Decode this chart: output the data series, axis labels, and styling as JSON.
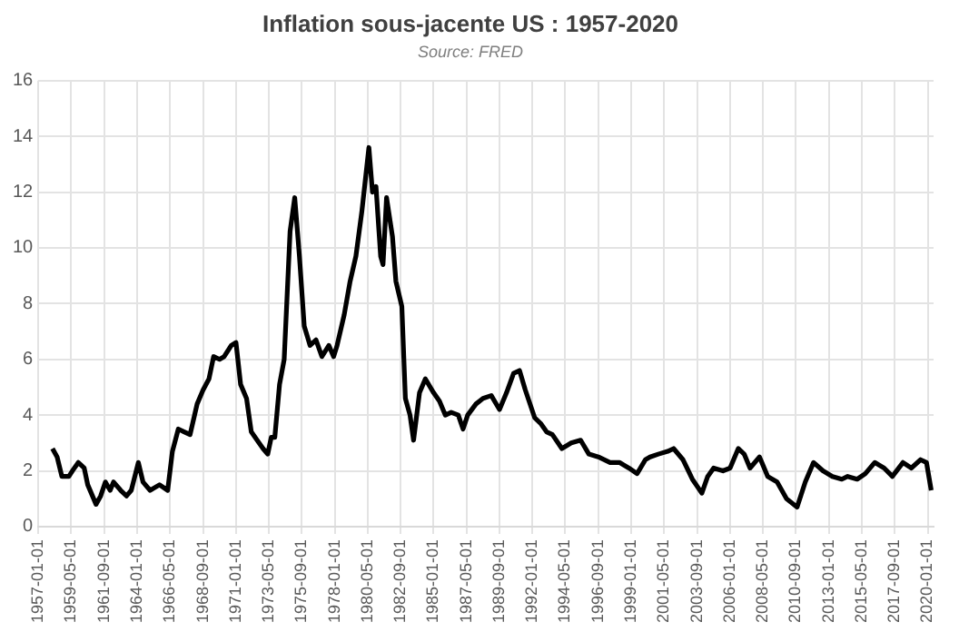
{
  "chart_data": {
    "type": "line",
    "title": "Inflation sous-jacente US : 1957-2020",
    "subtitle": "Source: FRED",
    "x": [
      "1958-01-01",
      "1958-05-01",
      "1958-09-01",
      "1959-03-01",
      "1959-06-01",
      "1959-11-01",
      "1960-04-01",
      "1960-07-01",
      "1961-02-01",
      "1961-06-01",
      "1961-10-01",
      "1962-02-01",
      "1962-05-01",
      "1962-11-01",
      "1963-04-01",
      "1963-08-01",
      "1964-02-01",
      "1964-06-01",
      "1964-12-01",
      "1965-08-01",
      "1966-03-01",
      "1966-07-01",
      "1966-12-01",
      "1967-05-01",
      "1967-10-01",
      "1968-04-01",
      "1968-09-01",
      "1969-02-01",
      "1969-06-01",
      "1969-11-01",
      "1970-03-01",
      "1970-09-01",
      "1971-01-01",
      "1971-05-01",
      "1971-10-01",
      "1972-02-01",
      "1972-07-01",
      "1972-12-01",
      "1973-04-01",
      "1973-07-01",
      "1973-10-01",
      "1974-02-01",
      "1974-06-01",
      "1974-11-01",
      "1975-03-01",
      "1975-07-01",
      "1975-11-01",
      "1976-04-01",
      "1976-09-01",
      "1977-02-01",
      "1977-08-01",
      "1977-12-01",
      "1978-03-01",
      "1978-09-01",
      "1979-02-01",
      "1979-07-01",
      "1979-12-01",
      "1980-06-01",
      "1980-09-01",
      "1980-12-01",
      "1981-04-01",
      "1981-06-01",
      "1981-09-01",
      "1982-02-01",
      "1982-05-01",
      "1982-10-01",
      "1983-01-01",
      "1983-05-01",
      "1983-08-01",
      "1984-01-01",
      "1984-06-01",
      "1985-01-01",
      "1985-06-01",
      "1985-11-01",
      "1986-04-01",
      "1986-10-01",
      "1987-02-01",
      "1987-06-01",
      "1988-01-01",
      "1988-07-01",
      "1989-02-01",
      "1989-09-01",
      "1990-03-01",
      "1990-09-01",
      "1991-02-01",
      "1991-07-01",
      "1992-03-01",
      "1992-08-01",
      "1993-01-01",
      "1993-06-01",
      "1994-02-01",
      "1994-10-01",
      "1995-06-01",
      "1996-01-01",
      "1996-09-01",
      "1997-07-01",
      "1998-03-01",
      "1998-11-01",
      "1999-06-01",
      "2000-01-01",
      "2000-05-01",
      "2000-12-01",
      "2001-08-01",
      "2002-01-01",
      "2002-09-01",
      "2003-05-01",
      "2004-01-01",
      "2004-06-01",
      "2004-11-01",
      "2005-07-01",
      "2006-01-01",
      "2006-08-01",
      "2007-01-01",
      "2007-06-01",
      "2008-02-01",
      "2008-09-01",
      "2009-05-01",
      "2010-01-01",
      "2010-10-01",
      "2011-05-01",
      "2011-12-01",
      "2012-08-01",
      "2013-04-01",
      "2013-12-01",
      "2014-05-01",
      "2015-01-01",
      "2015-08-01",
      "2016-04-01",
      "2016-12-01",
      "2017-07-01",
      "2018-04-01",
      "2018-11-01",
      "2019-07-01",
      "2019-12-01",
      "2020-04-01"
    ],
    "series": [
      {
        "color": "#000000",
        "values": [
          2.8,
          2.5,
          1.8,
          1.8,
          2.0,
          2.3,
          2.1,
          1.5,
          0.8,
          1.1,
          1.6,
          1.3,
          1.6,
          1.3,
          1.1,
          1.3,
          2.3,
          1.6,
          1.3,
          1.5,
          1.3,
          2.7,
          3.5,
          3.4,
          3.3,
          4.4,
          4.9,
          5.3,
          6.1,
          6.0,
          6.1,
          6.5,
          6.6,
          5.1,
          4.6,
          3.4,
          3.1,
          2.8,
          2.6,
          3.2,
          3.2,
          5.1,
          6.0,
          10.6,
          11.8,
          9.7,
          7.2,
          6.5,
          6.7,
          6.1,
          6.5,
          6.1,
          6.5,
          7.6,
          8.8,
          9.7,
          11.3,
          13.6,
          12.0,
          12.2,
          9.7,
          9.4,
          11.8,
          10.4,
          8.8,
          7.9,
          4.6,
          4.0,
          3.1,
          4.8,
          5.3,
          4.8,
          4.5,
          4.0,
          4.1,
          4.0,
          3.5,
          4.0,
          4.4,
          4.6,
          4.7,
          4.2,
          4.8,
          5.5,
          5.6,
          4.9,
          3.9,
          3.7,
          3.4,
          3.3,
          2.8,
          3.0,
          3.1,
          2.6,
          2.5,
          2.3,
          2.3,
          2.1,
          1.9,
          2.4,
          2.5,
          2.6,
          2.7,
          2.8,
          2.4,
          1.7,
          1.2,
          1.8,
          2.1,
          2.0,
          2.1,
          2.8,
          2.6,
          2.1,
          2.5,
          1.8,
          1.6,
          1.0,
          0.7,
          1.6,
          2.3,
          2.0,
          1.8,
          1.7,
          1.8,
          1.7,
          1.9,
          2.3,
          2.1,
          1.8,
          2.3,
          2.1,
          2.4,
          2.3,
          1.3
        ]
      }
    ],
    "xlim": [
      "1957-01-01",
      "2020-06-01"
    ],
    "xticks": [
      "1957-01-01",
      "1959-05-01",
      "1961-09-01",
      "1964-01-01",
      "1966-05-01",
      "1968-09-01",
      "1971-01-01",
      "1973-05-01",
      "1975-09-01",
      "1978-01-01",
      "1980-05-01",
      "1982-09-01",
      "1985-01-01",
      "1987-05-01",
      "1989-09-01",
      "1992-01-01",
      "1994-05-01",
      "1996-09-01",
      "1999-01-01",
      "2001-05-01",
      "2003-09-01",
      "2006-01-01",
      "2008-05-01",
      "2010-09-01",
      "2013-01-01",
      "2015-05-01",
      "2017-09-01",
      "2020-01-01"
    ],
    "ylim": [
      0,
      16
    ],
    "yticks": [
      0,
      2,
      4,
      6,
      8,
      10,
      12,
      14,
      16
    ],
    "grid": true,
    "legend": false,
    "marker": "none",
    "line_style": "solid"
  }
}
